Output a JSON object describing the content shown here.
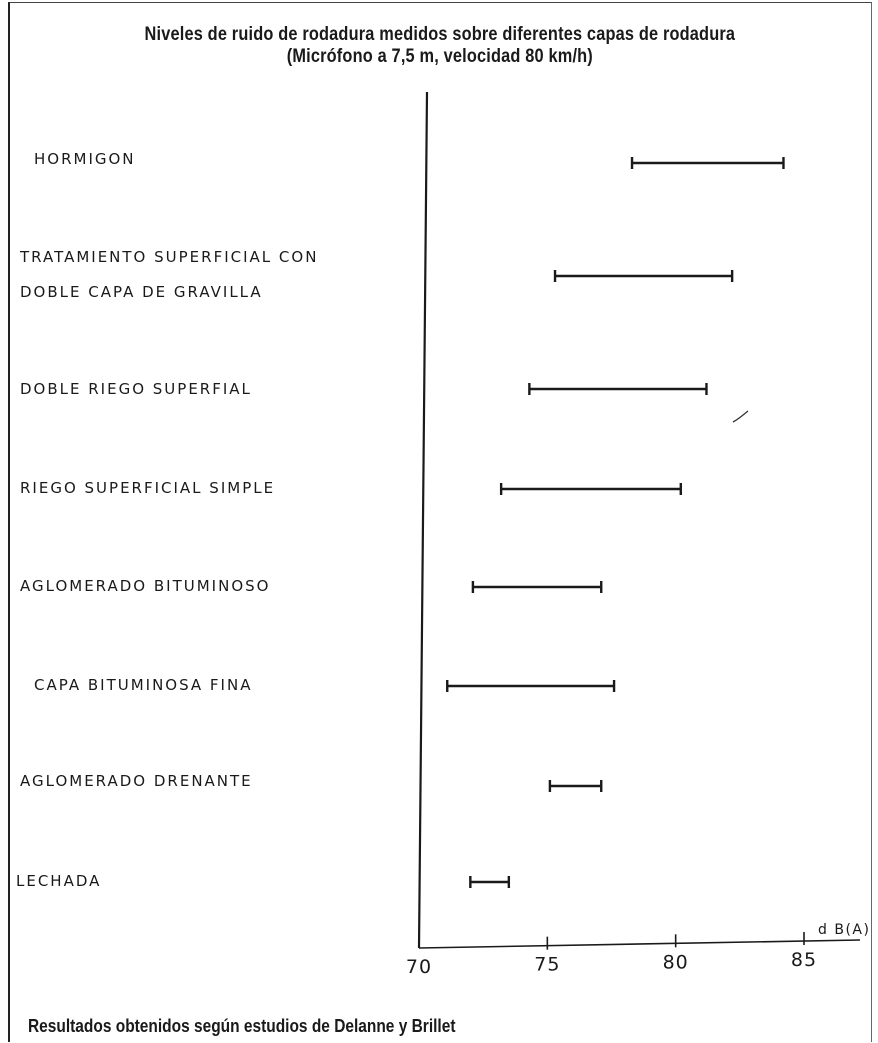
{
  "chart_data": {
    "type": "range",
    "title": "Niveles de ruido de rodadura medidos sobre diferentes capas de rodadura",
    "subtitle": "(Micrófono a 7,5 m, velocidad 80 km/h)",
    "xlabel": "d B(A)",
    "ylabel": "",
    "xlim": [
      70,
      87
    ],
    "xticks": [
      70,
      75,
      80,
      85
    ],
    "tick_labels": [
      "70",
      "75",
      "80",
      "85"
    ],
    "grid": false,
    "categories": [
      [
        "HORMIGON"
      ],
      [
        "TRATAMIENTO SUPERFICIAL CON",
        "DOBLE CAPA DE GRAVILLA"
      ],
      [
        "DOBLE RIEGO SUPERFIAL"
      ],
      [
        "RIEGO SUPERFICIAL SIMPLE"
      ],
      [
        "AGLOMERADO BITUMINOSO"
      ],
      [
        "CAPA BITUMINOSA FINA"
      ],
      [
        "AGLOMERADO DRENANTE"
      ],
      [
        "LECHADA"
      ]
    ],
    "ranges": [
      [
        78.3,
        84.2
      ],
      [
        75.3,
        82.2
      ],
      [
        74.3,
        81.2
      ],
      [
        73.2,
        80.2
      ],
      [
        72.1,
        77.1
      ],
      [
        71.1,
        77.6
      ],
      [
        75.1,
        77.1
      ],
      [
        72.0,
        73.5
      ]
    ],
    "footnote": "Resultados obtenidos según estudios de Delanne y Brillet"
  }
}
